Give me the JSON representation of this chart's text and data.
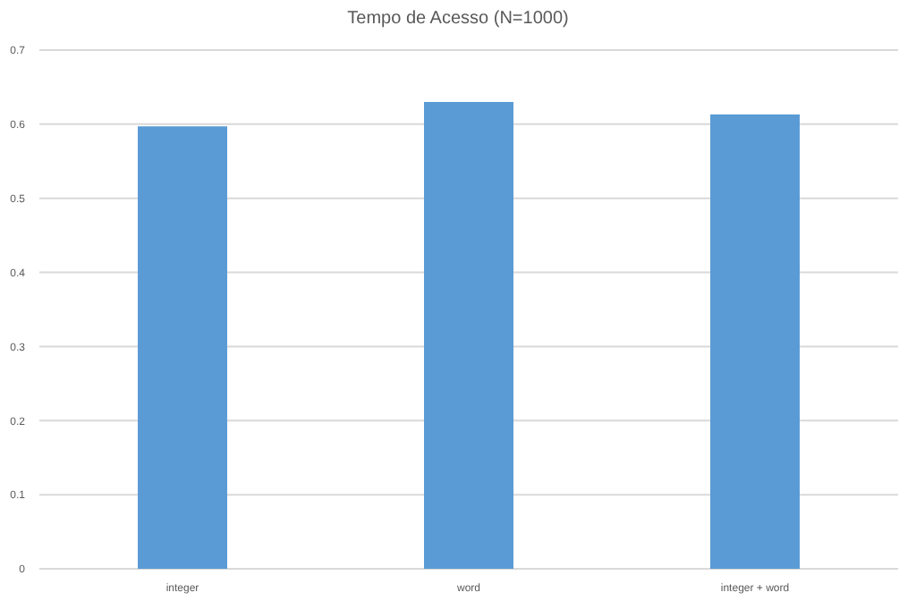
{
  "chart_data": {
    "type": "bar",
    "title": "Tempo de Acesso (N=1000)",
    "categories": [
      "integer",
      "word",
      "integer + word"
    ],
    "values": [
      0.597,
      0.63,
      0.613
    ],
    "color": "#5b9bd5",
    "ylim": [
      0,
      0.7
    ],
    "yticks": [
      0,
      0.1,
      0.2,
      0.3,
      0.4,
      0.5,
      0.6,
      0.7
    ],
    "grid": "y"
  }
}
